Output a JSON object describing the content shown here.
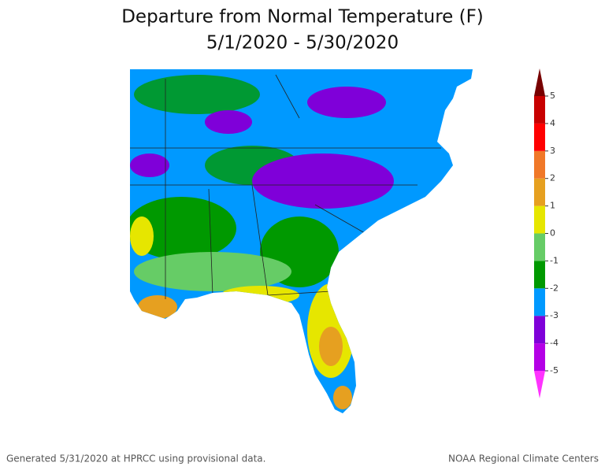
{
  "header": {
    "title": "Departure from Normal Temperature (F)",
    "subtitle": "5/1/2020 - 5/30/2020"
  },
  "colorbar": {
    "ticks": [
      -5,
      -4,
      -3,
      -2,
      -1,
      0,
      1,
      2,
      3,
      4,
      5
    ],
    "colors": [
      "#ff33ff",
      "#b400e6",
      "#7f00d9",
      "#0099ff",
      "#009900",
      "#66cc66",
      "#e6e600",
      "#e6a020",
      "#f07828",
      "#ff0000",
      "#c80000",
      "#780000"
    ]
  },
  "footer": {
    "left": "Generated 5/31/2020 at HPRCC using provisional data.",
    "right": "NOAA Regional Climate Centers"
  }
}
